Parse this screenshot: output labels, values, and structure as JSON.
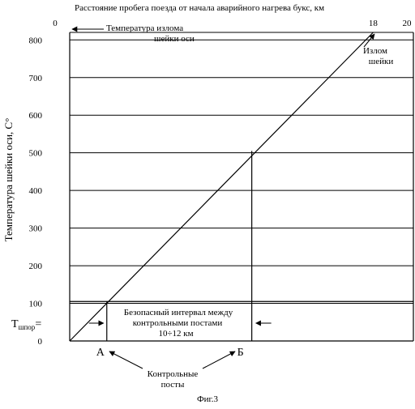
{
  "chart_data": {
    "type": "line",
    "title": "Расстояние пробега поезда от начала аварийного нагрева букс, км",
    "ylabel": "Температура шейки оси, С°",
    "xlabel": "",
    "ylim": [
      0,
      820
    ],
    "yticks": [
      0,
      100,
      200,
      300,
      400,
      500,
      600,
      700,
      800
    ],
    "top_ticks": [
      {
        "label": "0",
        "km": 0
      },
      {
        "label": "18",
        "km": 18
      },
      {
        "label": "20",
        "km": 20
      }
    ],
    "series": [
      {
        "x": [
          0,
          18
        ],
        "y": [
          0,
          820
        ]
      }
    ],
    "critical_temperature": 820,
    "marks": [
      {
        "label": "А",
        "km": 2.2,
        "temperature": 105
      },
      {
        "label": "Б",
        "km": 10.8,
        "temperature": 505
      }
    ],
    "t_label_main": "Т",
    "t_label_sub": "шпор",
    "t_label_suffix": "=",
    "annotations": {
      "break_temp": [
        "Температура излома",
        "шейки оси"
      ],
      "break": [
        "Излом",
        "шейки"
      ],
      "interval": [
        "Безопасный интервал между",
        "контрольными постами",
        "10÷12 км"
      ],
      "posts": [
        "Контрольные",
        "посты"
      ]
    },
    "figure_label": "Фиг.3"
  }
}
